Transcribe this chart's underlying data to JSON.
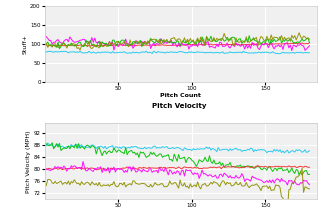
{
  "top_chart": {
    "xlabel": "Pitch Count",
    "ylabel": "Stuff+",
    "ylim": [
      0,
      200
    ],
    "yticks": [
      0,
      50,
      100,
      150,
      200
    ],
    "xlim": [
      0,
      185
    ],
    "xticks": [
      50,
      100,
      150
    ],
    "bg_color": "#f0f0f0",
    "grid_color": "white",
    "series": [
      {
        "color": "#1ec8f0",
        "base": 80,
        "slope": -0.03,
        "noise_scale": 3.0,
        "seed": 1
      },
      {
        "color": "#f03030",
        "base": 97,
        "slope": 0.03,
        "noise_scale": 2.0,
        "seed": 2
      },
      {
        "color": "#ff00ff",
        "base": 110,
        "slope": -0.02,
        "noise_scale": 12.0,
        "seed": 3
      },
      {
        "color": "#00c000",
        "base": 100,
        "slope": 0.01,
        "noise_scale": 12.0,
        "seed": 4
      },
      {
        "color": "#909000",
        "base": 95,
        "slope": 0.05,
        "noise_scale": 14.0,
        "seed": 5
      }
    ]
  },
  "bottom_chart": {
    "title": "Pitch Velocity",
    "xlabel": "",
    "ylabel": "Pitch Velocity (MPH)",
    "ylim": [
      70,
      95
    ],
    "yticks": [
      72,
      76,
      80,
      84,
      88,
      92
    ],
    "xlim": [
      0,
      185
    ],
    "xticks": [
      50,
      100,
      150
    ],
    "bg_color": "#f0f0f0",
    "grid_color": "white",
    "series": [
      {
        "color": "#1ec8f0",
        "base": 88,
        "slope": -0.015,
        "noise_scale": 0.8,
        "seed": 11
      },
      {
        "color": "#00c000",
        "base": 88,
        "slope": -0.03,
        "noise_scale": 1.5,
        "seed": 14
      },
      {
        "color": "#f03030",
        "base": 80,
        "slope": 0.008,
        "noise_scale": 0.4,
        "seed": 12
      },
      {
        "color": "#ff00ff",
        "base": 80,
        "slope": -0.02,
        "noise_scale": 1.5,
        "seed": 13
      },
      {
        "color": "#909000",
        "base": 76,
        "slope": -0.01,
        "noise_scale": 1.5,
        "seed": 15
      }
    ]
  }
}
